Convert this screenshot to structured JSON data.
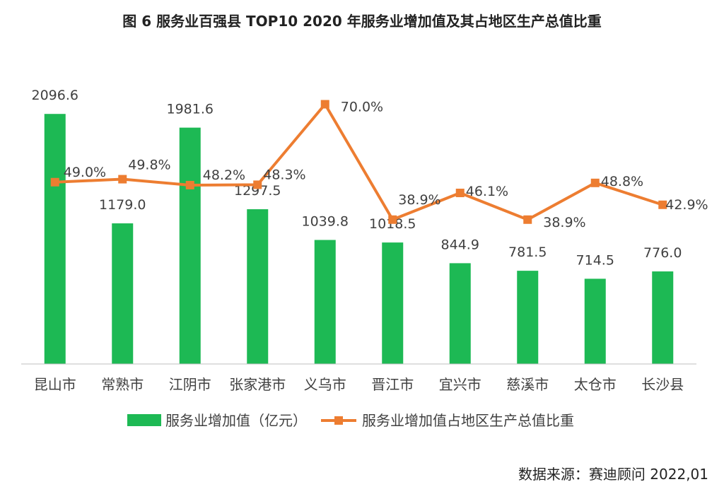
{
  "title": "图 6 服务业百强县 TOP10 2020 年服务业增加值及其占地区生产总值比重",
  "source": "数据来源：赛迪顾问 2022,01",
  "colors": {
    "bar": "#1db954",
    "line": "#ed7d31",
    "axis": "#bfbfbf",
    "text": "#404040"
  },
  "chart_data": {
    "type": "bar",
    "categories": [
      "昆山市",
      "常熟市",
      "江阴市",
      "张家港市",
      "义乌市",
      "晋江市",
      "宜兴市",
      "慈溪市",
      "太仓市",
      "长沙县"
    ],
    "series": [
      {
        "name": "服务业增加值（亿元）",
        "type": "bar",
        "axis": "left",
        "values": [
          2096.6,
          1179.0,
          1981.6,
          1297.5,
          1039.8,
          1018.5,
          844.9,
          781.5,
          714.5,
          776.0
        ],
        "labels": [
          "2096.6",
          "1179.0",
          "1981.6",
          "1297.5",
          "1039.8",
          "1018.5",
          "844.9",
          "781.5",
          "714.5",
          "776.0"
        ]
      },
      {
        "name": "服务业增加值占地区生产总值比重",
        "type": "line",
        "axis": "right",
        "values": [
          49.0,
          49.8,
          48.2,
          48.3,
          70.0,
          38.9,
          46.1,
          38.9,
          48.8,
          42.9
        ],
        "labels": [
          "49.0%",
          "49.8%",
          "48.2%",
          "48.3%",
          "70.0%",
          "38.9%",
          "46.1%",
          "38.9%",
          "48.8%",
          "42.9%"
        ]
      }
    ],
    "ylim_left": [
      0,
      2400
    ],
    "ylim_right": [
      0,
      80
    ],
    "grid": false,
    "legend_position": "bottom"
  }
}
